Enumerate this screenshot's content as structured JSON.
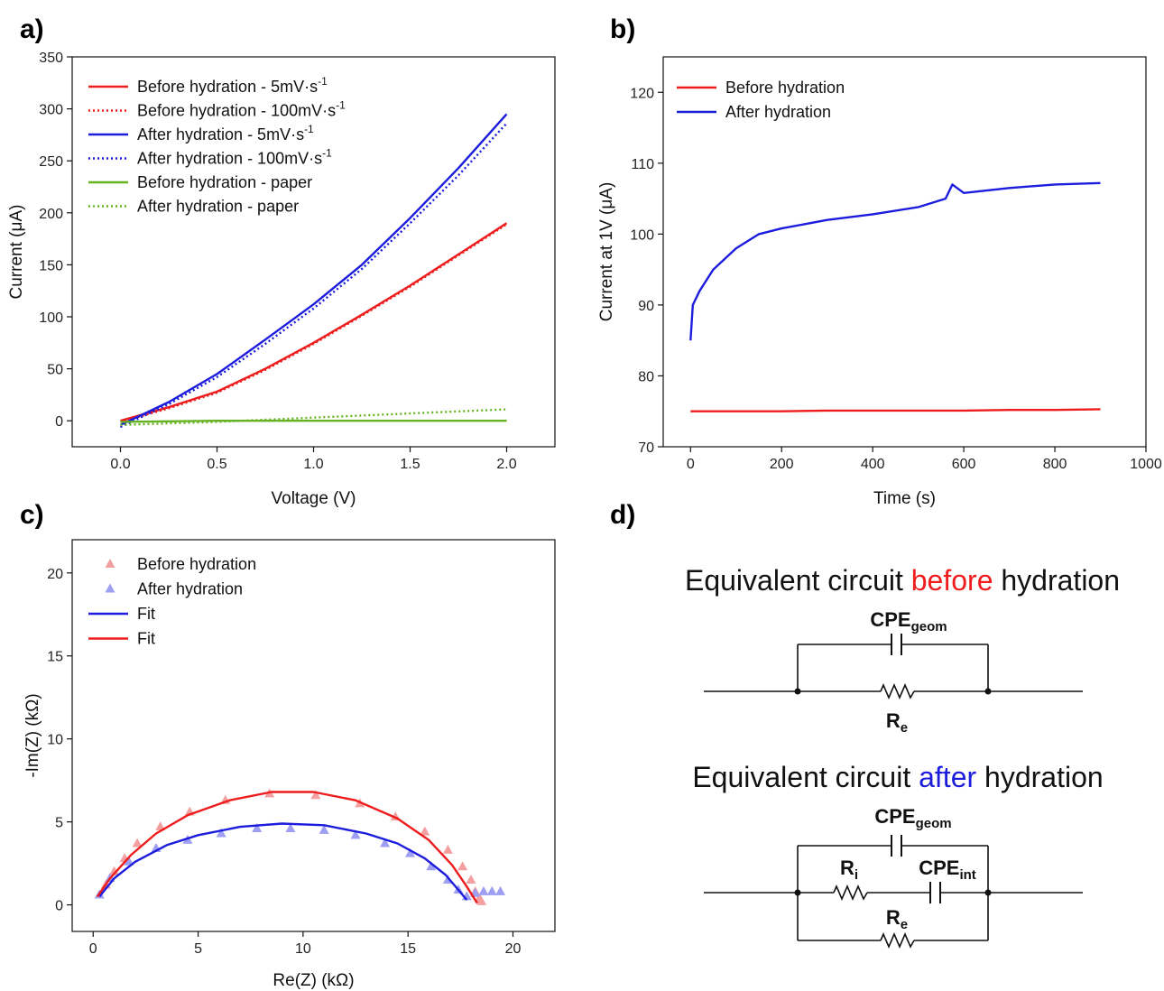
{
  "panels": {
    "a": "a)",
    "b": "b)",
    "c": "c)",
    "d": "d)"
  },
  "chart_data": [
    {
      "id": "a",
      "type": "line",
      "xlabel": "Voltage (V)",
      "ylabel": "Current (μA)",
      "xlim": [
        -0.25,
        2.25
      ],
      "ylim": [
        -25,
        350
      ],
      "xticks": [
        0.0,
        0.5,
        1.0,
        1.5,
        2.0
      ],
      "xtick_labels": [
        "0.0",
        "0.5",
        "1.0",
        "1.5",
        "2.0"
      ],
      "yticks": [
        0,
        50,
        100,
        150,
        200,
        250,
        300,
        350
      ],
      "ytick_labels": [
        "0",
        "50",
        "100",
        "150",
        "200",
        "250",
        "300",
        "350"
      ],
      "legend_position": "top-left",
      "series": [
        {
          "name": "Before hydration - 5mV·s",
          "sup": "-1",
          "color": "#ee1c1c",
          "style": "solid",
          "x": [
            0,
            0.25,
            0.5,
            0.75,
            1.0,
            1.25,
            1.5,
            1.75,
            2.0
          ],
          "y": [
            0,
            13,
            28,
            50,
            75,
            102,
            130,
            160,
            190
          ]
        },
        {
          "name": "Before hydration - 100mV·s",
          "sup": "-1",
          "color": "#ee1c1c",
          "style": "dotted",
          "x": [
            0,
            0.25,
            0.5,
            0.75,
            1.0,
            1.25,
            1.5,
            1.75,
            2.0
          ],
          "y": [
            -1,
            12,
            27,
            49,
            74,
            101,
            129,
            159,
            189
          ]
        },
        {
          "name": "After hydration - 5mV·s",
          "sup": "-1",
          "color": "#1c1cdd",
          "style": "solid",
          "x": [
            0,
            0.25,
            0.5,
            0.75,
            1.0,
            1.25,
            1.5,
            1.75,
            2.0
          ],
          "y": [
            -4,
            18,
            45,
            78,
            112,
            150,
            195,
            243,
            295
          ]
        },
        {
          "name": "After hydration - 100mV·s",
          "sup": "-1",
          "color": "#1c1cdd",
          "style": "dotted",
          "x": [
            0,
            0.25,
            0.5,
            0.75,
            1.0,
            1.25,
            1.5,
            1.75,
            2.0
          ],
          "y": [
            -6,
            16,
            42,
            74,
            108,
            146,
            190,
            236,
            286
          ]
        },
        {
          "name": "Before hydration - paper",
          "sup": "",
          "color": "#66b322",
          "style": "solid",
          "x": [
            0,
            0.5,
            1.0,
            1.5,
            2.0
          ],
          "y": [
            -1,
            0,
            0,
            0,
            0
          ]
        },
        {
          "name": "After hydration - paper",
          "sup": "",
          "color": "#66b322",
          "style": "dotted",
          "x": [
            0,
            0.5,
            1.0,
            1.5,
            2.0
          ],
          "y": [
            -4,
            -1,
            3,
            7,
            11
          ]
        }
      ]
    },
    {
      "id": "b",
      "type": "line",
      "xlabel": "Time (s)",
      "ylabel": "Current at 1V (μA)",
      "xlim": [
        -60,
        1000
      ],
      "ylim": [
        70,
        125
      ],
      "xticks": [
        0,
        200,
        400,
        600,
        800,
        1000
      ],
      "xtick_labels": [
        "0",
        "200",
        "400",
        "600",
        "800",
        "1000"
      ],
      "yticks": [
        70,
        80,
        90,
        100,
        110,
        120
      ],
      "ytick_labels": [
        "70",
        "80",
        "90",
        "100",
        "110",
        "120"
      ],
      "legend_position": "top-left",
      "series": [
        {
          "name": "Before hydration",
          "color": "#ee1c1c",
          "x": [
            0,
            100,
            200,
            300,
            400,
            500,
            600,
            700,
            800,
            900
          ],
          "y": [
            75.0,
            75.0,
            75.0,
            75.1,
            75.1,
            75.1,
            75.1,
            75.2,
            75.2,
            75.3
          ]
        },
        {
          "name": "After hydration",
          "color": "#1c1cdd",
          "x": [
            0,
            5,
            20,
            50,
            100,
            150,
            200,
            300,
            400,
            500,
            560,
            575,
            600,
            700,
            800,
            900
          ],
          "y": [
            85,
            90,
            92,
            95,
            98,
            100,
            100.8,
            102,
            102.8,
            103.8,
            105,
            107,
            105.8,
            106.5,
            107,
            107.2
          ]
        }
      ]
    },
    {
      "id": "c",
      "type": "scatter",
      "xlabel": "Re(Z) (kΩ)",
      "ylabel": "-Im(Z) (kΩ)",
      "xlim": [
        -1,
        22
      ],
      "ylim": [
        -1.6,
        22
      ],
      "xticks": [
        0,
        5,
        10,
        15,
        20
      ],
      "xtick_labels": [
        "0",
        "5",
        "10",
        "15",
        "20"
      ],
      "yticks": [
        0,
        5,
        10,
        15,
        20
      ],
      "ytick_labels": [
        "0",
        "5",
        "10",
        "15",
        "20"
      ],
      "legend_position": "top-left",
      "series": [
        {
          "name": "Before hydration",
          "marker": "triangle",
          "color": "#f4a0a0",
          "x": [
            0.3,
            0.6,
            1.0,
            1.5,
            2.1,
            3.2,
            4.6,
            6.3,
            8.4,
            10.6,
            12.7,
            14.4,
            15.8,
            16.9,
            17.6,
            18.0,
            18.2,
            18.4,
            18.5
          ],
          "y": [
            0.6,
            1.2,
            2.0,
            2.8,
            3.7,
            4.7,
            5.6,
            6.3,
            6.7,
            6.6,
            6.1,
            5.3,
            4.4,
            3.3,
            2.3,
            1.5,
            0.8,
            0.4,
            0.2
          ]
        },
        {
          "name": "After hydration",
          "marker": "triangle",
          "color": "#9e9ef2",
          "x": [
            0.3,
            0.8,
            1.7,
            3.0,
            4.5,
            6.1,
            7.8,
            9.4,
            11.0,
            12.5,
            13.9,
            15.1,
            16.1,
            16.9,
            17.4,
            17.8,
            18.2,
            18.6,
            19.0,
            19.4
          ],
          "y": [
            0.6,
            1.6,
            2.6,
            3.4,
            3.9,
            4.3,
            4.6,
            4.6,
            4.5,
            4.2,
            3.7,
            3.1,
            2.3,
            1.5,
            0.9,
            0.5,
            0.7,
            0.8,
            0.8,
            0.8
          ]
        },
        {
          "name": "Fit",
          "type": "line",
          "color": "#1c1cdd",
          "x": [
            0.3,
            1.0,
            2.0,
            3.5,
            5.0,
            7.0,
            9.0,
            11.0,
            13.0,
            14.5,
            15.8,
            16.8,
            17.4,
            17.8
          ],
          "y": [
            0.5,
            1.6,
            2.6,
            3.6,
            4.2,
            4.7,
            4.9,
            4.8,
            4.3,
            3.7,
            2.8,
            1.8,
            0.9,
            0.3
          ]
        },
        {
          "name": "Fit",
          "type": "line",
          "color": "#ee1c1c",
          "x": [
            0.2,
            0.8,
            1.8,
            3.0,
            4.5,
            6.5,
            8.5,
            10.5,
            12.5,
            14.5,
            16.0,
            17.1,
            17.8,
            18.3
          ],
          "y": [
            0.5,
            1.6,
            3.0,
            4.3,
            5.4,
            6.3,
            6.8,
            6.8,
            6.3,
            5.2,
            3.9,
            2.4,
            1.1,
            0.1
          ]
        }
      ]
    }
  ],
  "circuit": {
    "before": {
      "pre": "Equivalent circuit ",
      "hl": "before",
      "post": " hydration",
      "hl_color": "#ee1c1c"
    },
    "after": {
      "pre": "Equivalent circuit ",
      "hl": "after",
      "post": " hydration",
      "hl_color": "#1c1cdd"
    },
    "cpe_main": "CPE",
    "cpe_geom_sub": "geom",
    "cpe_int_sub": "int",
    "r_main": "R",
    "r_e_sub": "e",
    "r_i_sub": "i"
  }
}
